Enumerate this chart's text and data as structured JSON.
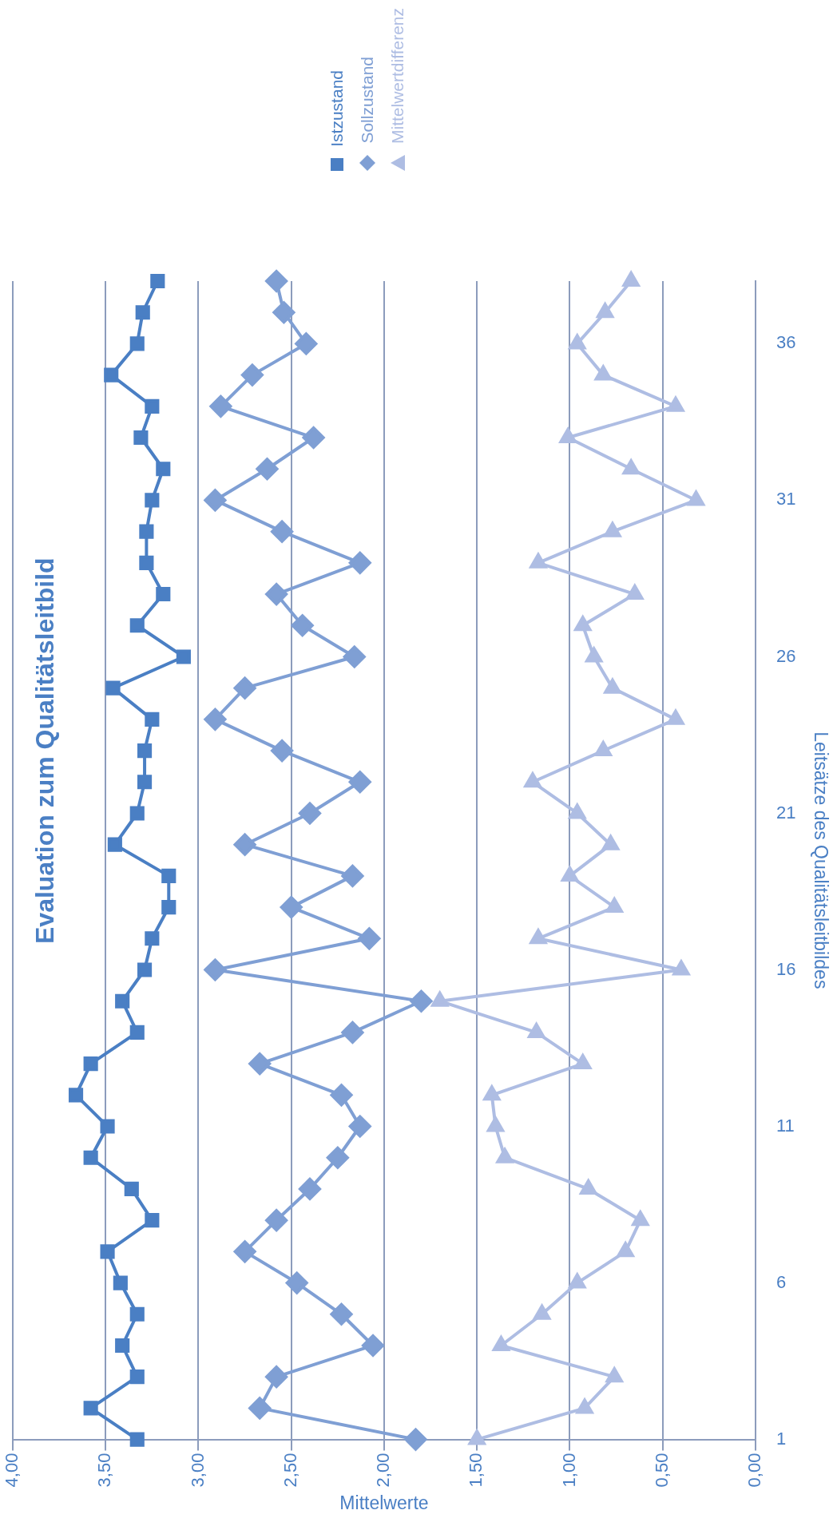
{
  "chart_data": {
    "type": "line",
    "orientation": "horizontal",
    "title": "Evaluation zum Qualitätsleitbild",
    "ylabel": "Leitsätze des Qualitätsleitbildes",
    "xlabel": "Mittelwerte",
    "categories": [
      null,
      null,
      "36",
      null,
      null,
      null,
      null,
      "31",
      null,
      null,
      null,
      null,
      "26",
      null,
      null,
      null,
      null,
      "21",
      null,
      null,
      null,
      null,
      "16",
      null,
      null,
      null,
      null,
      "11",
      null,
      null,
      null,
      null,
      "6",
      null,
      null,
      null,
      null,
      "1"
    ],
    "series": [
      {
        "name": "Istzustand",
        "color": "#4a7fc4",
        "marker": "square",
        "values": [
          3.22,
          3.3,
          3.33,
          3.47,
          3.25,
          3.31,
          3.19,
          3.25,
          3.28,
          3.28,
          3.19,
          3.33,
          3.08,
          3.46,
          3.25,
          3.29,
          3.29,
          3.33,
          3.45,
          3.16,
          3.16,
          3.25,
          3.29,
          3.41,
          3.33,
          3.58,
          3.66,
          3.49,
          3.58,
          3.36,
          3.25,
          3.49,
          3.42,
          3.33,
          3.41,
          3.33,
          3.58,
          3.33
        ]
      },
      {
        "name": "Sollzustand",
        "color": "#7f9fd4",
        "marker": "diamond",
        "values": [
          2.58,
          2.54,
          2.42,
          2.71,
          2.88,
          2.38,
          2.63,
          2.91,
          2.55,
          2.13,
          2.58,
          2.44,
          2.16,
          2.75,
          2.91,
          2.55,
          2.13,
          2.4,
          2.75,
          2.17,
          2.5,
          2.08,
          2.91,
          1.8,
          2.17,
          2.67,
          2.23,
          2.13,
          2.25,
          2.4,
          2.58,
          2.75,
          2.47,
          2.23,
          2.06,
          2.58,
          2.67,
          1.83
        ]
      },
      {
        "name": "Mittelwertdifferenz",
        "color": "#aebde3",
        "marker": "triangle",
        "values": [
          0.67,
          0.81,
          0.96,
          0.82,
          0.43,
          1.01,
          0.67,
          0.32,
          0.77,
          1.17,
          0.65,
          0.93,
          0.87,
          0.77,
          0.43,
          0.82,
          1.2,
          0.96,
          0.78,
          1.0,
          0.76,
          1.17,
          0.4,
          1.7,
          1.18,
          0.93,
          1.42,
          1.4,
          1.35,
          0.9,
          0.62,
          0.7,
          0.96,
          1.15,
          1.37,
          0.76,
          0.92,
          1.5
        ]
      }
    ],
    "xlim": [
      4,
      0
    ],
    "xticks": [
      {
        "value": 4,
        "label": "4,00"
      },
      {
        "value": 3.5,
        "label": "3,50"
      },
      {
        "value": 3,
        "label": "3,00"
      },
      {
        "value": 2.5,
        "label": "2,50"
      },
      {
        "value": 2,
        "label": "2,00"
      },
      {
        "value": 1.5,
        "label": "1,50"
      },
      {
        "value": 1,
        "label": "1,00"
      },
      {
        "value": 0.5,
        "label": "0,50"
      },
      {
        "value": 0,
        "label": "0,00"
      }
    ],
    "grid": "x",
    "legend": "top right",
    "line_style": "solid"
  }
}
